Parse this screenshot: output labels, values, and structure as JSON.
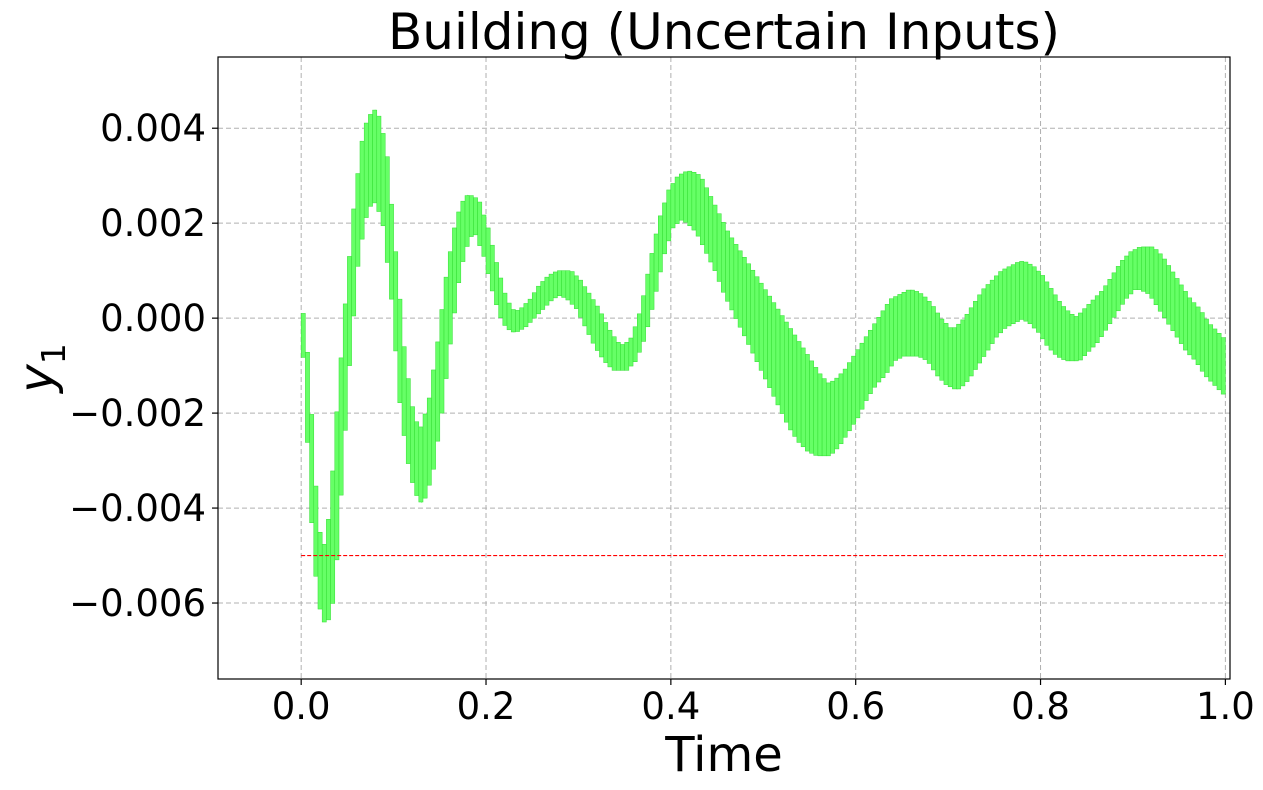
{
  "chart_data": {
    "type": "area",
    "title": "Building (Uncertain Inputs)",
    "xlabel": "Time",
    "ylabel_base": "y",
    "ylabel_sub": "1",
    "xlim": [
      -0.09,
      1.005
    ],
    "ylim": [
      -0.0076,
      0.0055
    ],
    "xticks": [
      0.0,
      0.2,
      0.4,
      0.6,
      0.8,
      1.0
    ],
    "xtick_labels": [
      "0.0",
      "0.2",
      "0.4",
      "0.6",
      "0.8",
      "1.0"
    ],
    "yticks": [
      0.004,
      0.002,
      0.0,
      -0.002,
      -0.004,
      -0.006
    ],
    "ytick_labels": [
      "0.004",
      "0.002",
      "0.000",
      "−0.002",
      "−0.004",
      "−0.006"
    ],
    "grid": true,
    "series": [
      {
        "kind": "reachable-interval",
        "color": "#66ff66",
        "edge_color": "#33dd33",
        "t": [
          0.0,
          0.005,
          0.01,
          0.015,
          0.02,
          0.025,
          0.03,
          0.035,
          0.04,
          0.05,
          0.06,
          0.07,
          0.08,
          0.09,
          0.1,
          0.11,
          0.12,
          0.13,
          0.14,
          0.15,
          0.16,
          0.17,
          0.18,
          0.19,
          0.2,
          0.21,
          0.22,
          0.23,
          0.24,
          0.25,
          0.26,
          0.27,
          0.28,
          0.29,
          0.3,
          0.31,
          0.32,
          0.33,
          0.34,
          0.35,
          0.36,
          0.37,
          0.38,
          0.39,
          0.4,
          0.41,
          0.42,
          0.43,
          0.44,
          0.45,
          0.46,
          0.47,
          0.48,
          0.49,
          0.5,
          0.51,
          0.52,
          0.53,
          0.54,
          0.55,
          0.56,
          0.57,
          0.58,
          0.59,
          0.6,
          0.61,
          0.62,
          0.63,
          0.64,
          0.65,
          0.66,
          0.67,
          0.68,
          0.69,
          0.7,
          0.71,
          0.72,
          0.73,
          0.74,
          0.75,
          0.76,
          0.77,
          0.78,
          0.79,
          0.8,
          0.81,
          0.82,
          0.83,
          0.84,
          0.85,
          0.86,
          0.87,
          0.88,
          0.89,
          0.9,
          0.91,
          0.92,
          0.93,
          0.94,
          0.95,
          0.96,
          0.97,
          0.98,
          0.99,
          1.0
        ],
        "upper": [
          0.0001,
          -0.0008,
          -0.0023,
          -0.004,
          -0.0048,
          -0.0049,
          -0.0046,
          -0.0036,
          -0.0022,
          0.0003,
          0.0025,
          0.004,
          0.0044,
          0.0036,
          0.0014,
          -0.0008,
          -0.0021,
          -0.0024,
          -0.0018,
          -0.0005,
          0.001,
          0.0021,
          0.0026,
          0.0025,
          0.0019,
          0.0011,
          0.0004,
          0.0001,
          0.0002,
          0.0004,
          0.0007,
          0.0009,
          0.001,
          0.001,
          0.0008,
          0.0005,
          0.0002,
          -0.0002,
          -0.0005,
          -0.0006,
          -0.0004,
          0.0002,
          0.0012,
          0.0021,
          0.0027,
          0.003,
          0.0031,
          0.003,
          0.0026,
          0.0022,
          0.0018,
          0.0015,
          0.0012,
          0.0009,
          0.0006,
          0.0003,
          0.0,
          -0.0003,
          -0.0006,
          -0.0009,
          -0.0012,
          -0.0014,
          -0.0013,
          -0.0011,
          -0.0008,
          -0.0005,
          -0.0002,
          0.0001,
          0.0004,
          0.0005,
          0.0006,
          0.0005,
          0.0003,
          0.0,
          -0.0002,
          -0.0002,
          0.0,
          0.0003,
          0.0006,
          0.0008,
          0.001,
          0.0011,
          0.0012,
          0.0011,
          0.0009,
          0.0006,
          0.0003,
          0.0001,
          0.0,
          0.0002,
          0.0004,
          0.0006,
          0.0009,
          0.0012,
          0.0014,
          0.0015,
          0.0015,
          0.0013,
          0.001,
          0.0007,
          0.0004,
          0.0002,
          -0.0001,
          -0.0003,
          -0.0005
        ],
        "lower": [
          -0.0001,
          -0.0009,
          -0.003,
          -0.0048,
          -0.0058,
          -0.0064,
          -0.0063,
          -0.0055,
          -0.004,
          -0.001,
          0.0013,
          0.0023,
          0.0025,
          0.0021,
          0.0004,
          -0.002,
          -0.0033,
          -0.0039,
          -0.0033,
          -0.002,
          -0.0004,
          0.001,
          0.0017,
          0.0018,
          0.0013,
          0.0005,
          -0.0001,
          -0.0003,
          -0.0002,
          0.0,
          0.0002,
          0.0004,
          0.0005,
          0.0004,
          0.0002,
          -0.0002,
          -0.0006,
          -0.0009,
          -0.0011,
          -0.0011,
          -0.0009,
          -0.0004,
          0.0004,
          0.0013,
          0.0019,
          0.0021,
          0.002,
          0.0018,
          0.0014,
          0.001,
          0.0005,
          0.0001,
          -0.0003,
          -0.0007,
          -0.0011,
          -0.0015,
          -0.0019,
          -0.0023,
          -0.0026,
          -0.0028,
          -0.0029,
          -0.0029,
          -0.0027,
          -0.0024,
          -0.0021,
          -0.0017,
          -0.0014,
          -0.0012,
          -0.0009,
          -0.0008,
          -0.0008,
          -0.0008,
          -0.0009,
          -0.0012,
          -0.0014,
          -0.0015,
          -0.0013,
          -0.001,
          -0.0007,
          -0.0004,
          -0.0002,
          -0.0001,
          0.0,
          -0.0001,
          -0.0003,
          -0.0006,
          -0.0008,
          -0.0009,
          -0.0009,
          -0.0007,
          -0.0005,
          -0.0002,
          0.0001,
          0.0004,
          0.0006,
          0.0006,
          0.0005,
          0.0002,
          -0.0001,
          -0.0004,
          -0.0007,
          -0.0009,
          -0.0012,
          -0.0014,
          -0.0016
        ]
      },
      {
        "kind": "threshold",
        "color": "#ff0000",
        "style": "dashed",
        "x": [
          0.0,
          1.0
        ],
        "y": [
          -0.005,
          -0.005
        ]
      }
    ]
  }
}
